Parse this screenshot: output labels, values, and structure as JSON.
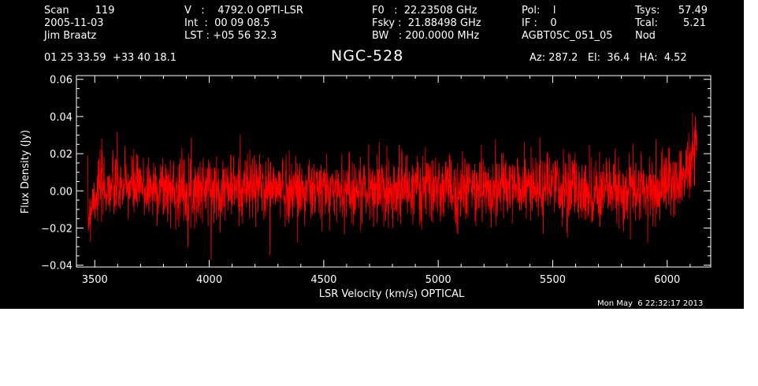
{
  "header": {
    "col1": [
      "Scan        119",
      "2005-11-03",
      "Jim Braatz"
    ],
    "col2": [
      "V   :    4792.0 OPTI-LSR",
      "Int  :  00 09 08.5",
      "LST : +05 56 32.3"
    ],
    "col3": [
      "F0   :  22.23508 GHz",
      "Fsky :  21.88498 GHz",
      "BW   : 200.0000 MHz"
    ],
    "col4": [
      "Pol:    l",
      "IF :    0",
      "AGBT05C_051_05"
    ],
    "col5_labels": [
      "Tsys:",
      "Tcal:",
      "Nod"
    ],
    "col5_values": [
      "57.49",
      "5.21",
      ""
    ],
    "coords": "01 25 33.59  +33 40 18.1",
    "source": "NGC-528",
    "azel": "Az: 287.2   El:  36.4   HA:  4.52",
    "timestamp": "Mon May  6 22:32:17 2013"
  },
  "chart_data": {
    "type": "line",
    "title": "NGC-528",
    "xlabel": "LSR Velocity (km/s) OPTICAL",
    "ylabel": "Flux Density (Jy)",
    "xlim": [
      3420,
      6190
    ],
    "ylim": [
      -0.041,
      0.062
    ],
    "xticks": [
      3500,
      4000,
      4500,
      5000,
      5500,
      6000
    ],
    "xtick_labels": [
      "3500",
      "4000",
      "4500",
      "5000",
      "5500",
      "6000"
    ],
    "yticks": [
      -0.04,
      -0.02,
      0.0,
      0.02,
      0.04,
      0.06
    ],
    "ytick_labels": [
      "−0.04",
      "−0.02",
      "0.00",
      "0.02",
      "0.04",
      "0.06"
    ],
    "line_color": "#ff0000",
    "axis_color": "#ffffff",
    "series": [
      {
        "x_range": [
          3470,
          6130
        ],
        "noise_rms_jy": 0.009,
        "envelope": [
          [
            3470,
            -0.016
          ],
          [
            3490,
            -0.004
          ],
          [
            3520,
            0.002
          ],
          [
            3600,
            0.002
          ],
          [
            3900,
            0.001
          ],
          [
            4200,
            0.002
          ],
          [
            4500,
            0.0
          ],
          [
            4800,
            0.001
          ],
          [
            5100,
            0.001
          ],
          [
            5400,
            0.002
          ],
          [
            5700,
            0.0
          ],
          [
            5900,
            0.0
          ],
          [
            6000,
            0.003
          ],
          [
            6050,
            0.007
          ],
          [
            6090,
            0.012
          ],
          [
            6110,
            0.018
          ],
          [
            6130,
            0.026
          ]
        ]
      }
    ]
  }
}
